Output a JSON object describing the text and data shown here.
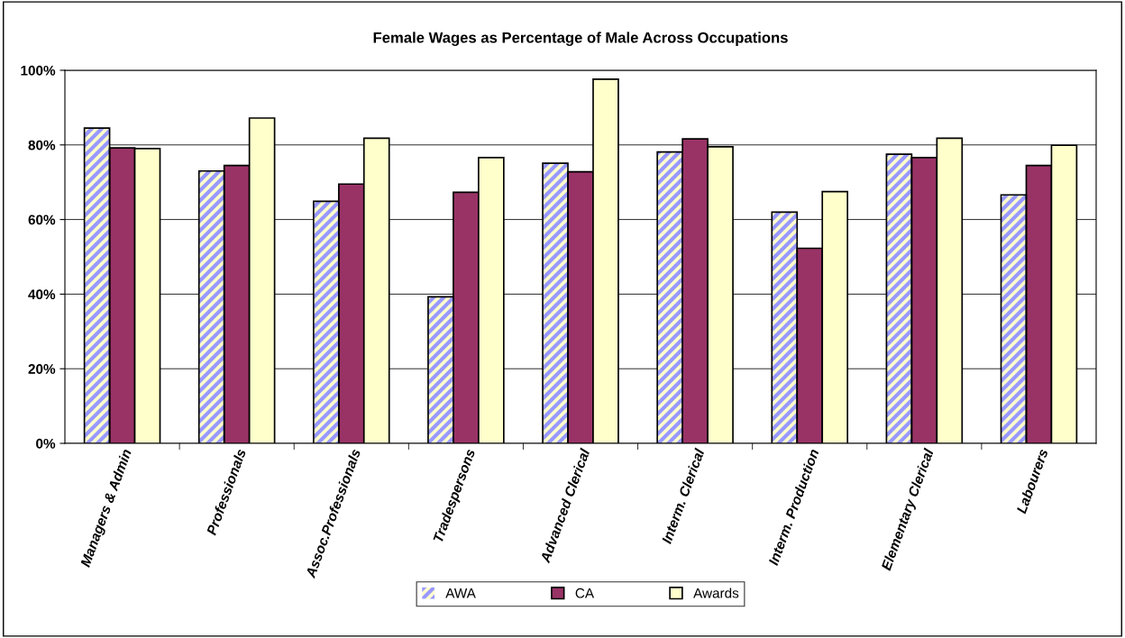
{
  "chart_data": {
    "type": "bar",
    "title": "Female Wages as Percentage of Male Across Occupations",
    "categories": [
      "Managers & Admin",
      "Professionals",
      "Assoc.Professionals",
      "Tradespersons",
      "Advanced Clerical",
      "Interm. Clerical",
      "Interm. Production",
      "Elementary Clerical",
      "Labourers"
    ],
    "series": [
      {
        "name": "AWA",
        "color": "#9999ff",
        "values": [
          84.5,
          73.0,
          64.9,
          39.3,
          75.1,
          78.1,
          62.0,
          77.5,
          66.6
        ]
      },
      {
        "name": "CA",
        "color": "#993366",
        "values": [
          79.2,
          74.5,
          69.5,
          67.3,
          72.8,
          81.6,
          52.3,
          76.6,
          74.5
        ]
      },
      {
        "name": "Awards",
        "color": "#ffffcc",
        "values": [
          79.0,
          87.2,
          81.8,
          76.6,
          97.6,
          79.5,
          67.5,
          81.8,
          79.9
        ]
      }
    ],
    "ylim": [
      0,
      100
    ],
    "yticks": [
      {
        "value": 0,
        "label": "0%"
      },
      {
        "value": 20,
        "label": "20%"
      },
      {
        "value": 40,
        "label": "40%"
      },
      {
        "value": 60,
        "label": "60%"
      },
      {
        "value": 80,
        "label": "80%"
      },
      {
        "value": 100,
        "label": "100%"
      }
    ],
    "grid": "y",
    "legend": "bottom"
  }
}
